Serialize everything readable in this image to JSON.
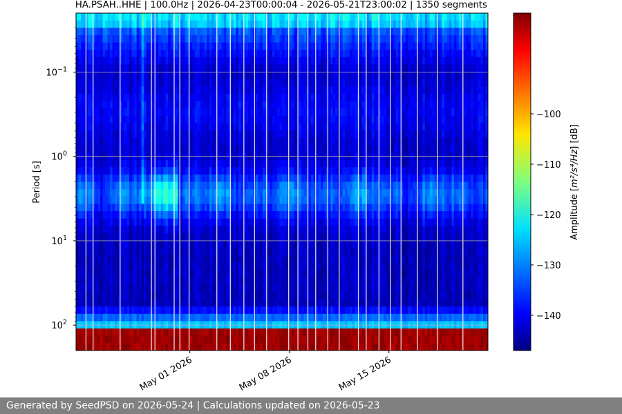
{
  "chart_data": {
    "type": "heatmap",
    "title": "HA.PSAH..HHE | 100.0Hz | 2026-04-23T00:00:04 - 2026-05-21T23:00:02 | 1350 segments",
    "xlabel": "",
    "ylabel": "Period [s]",
    "x_range": [
      "2026-04-23T00:00:04",
      "2026-05-21T23:00:02"
    ],
    "x_ticks": [
      {
        "value": "2026-05-01",
        "label": "May 01 2026"
      },
      {
        "value": "2026-05-08",
        "label": "May 08 2026"
      },
      {
        "value": "2026-05-15",
        "label": "May 15 2026"
      }
    ],
    "y_scale": "log",
    "y_inverted": true,
    "y_range_seconds": [
      0.02,
      200
    ],
    "y_ticks": [
      {
        "value": 0.1,
        "base": "10",
        "exp": "−1"
      },
      {
        "value": 1,
        "base": "10",
        "exp": "0"
      },
      {
        "value": 10,
        "base": "10",
        "exp": "1"
      },
      {
        "value": 100,
        "base": "10",
        "exp": "2"
      }
    ],
    "grid": true,
    "colormap": "jet",
    "colorbar": {
      "label_prefix": "Amplitude [",
      "label_math": "m²/s⁴/Hz",
      "label_suffix": "] [dB]",
      "range_db": [
        -147,
        -80
      ],
      "ticks": [
        {
          "value": -100,
          "label": "−100"
        },
        {
          "value": -110,
          "label": "−110"
        },
        {
          "value": -120,
          "label": "−120"
        },
        {
          "value": -130,
          "label": "−130"
        },
        {
          "value": -140,
          "label": "−140"
        }
      ]
    },
    "data_gaps_days_from_start": [
      0.7,
      1.2,
      3.1,
      5.3,
      5.55,
      6.9,
      7.3,
      7.95,
      9.9,
      10.85,
      11.8,
      12.55,
      13.4,
      14.95,
      15.6,
      16.3,
      16.85,
      17.7,
      18.5,
      19.85,
      20.4,
      21.3,
      22.1,
      22.85,
      24.0,
      25.4,
      27.2
    ]
  },
  "footer": {
    "text": "Generated by SeedPSD on 2026-05-24 | Calculations updated on 2026-05-23"
  }
}
